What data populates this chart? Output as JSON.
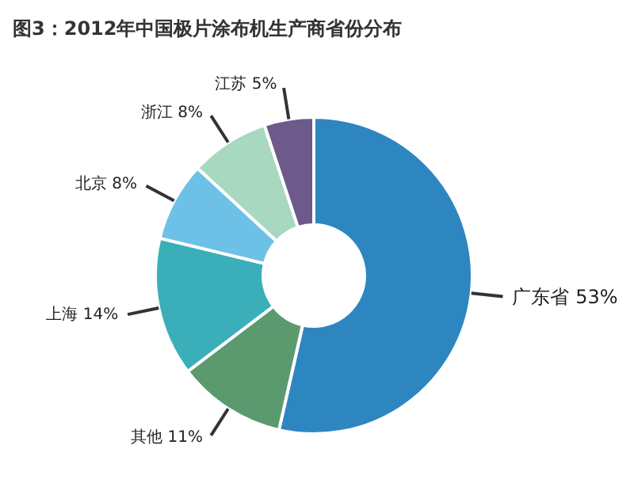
{
  "chart_data": {
    "type": "donut",
    "title": "图3：2012年中国极片涂布机生产商省份分布",
    "categories": [
      "广东省",
      "其他",
      "上海",
      "北京",
      "浙江",
      "江苏"
    ],
    "values": [
      53,
      11,
      14,
      8,
      8,
      5
    ],
    "value_labels": [
      "53%",
      "11%",
      "14%",
      "8%",
      "8%",
      "5%"
    ],
    "colors": [
      "#2e86c1",
      "#5a9a6e",
      "#3aafb9",
      "#6ec1e6",
      "#a8d8c0",
      "#6b5a8a"
    ]
  }
}
